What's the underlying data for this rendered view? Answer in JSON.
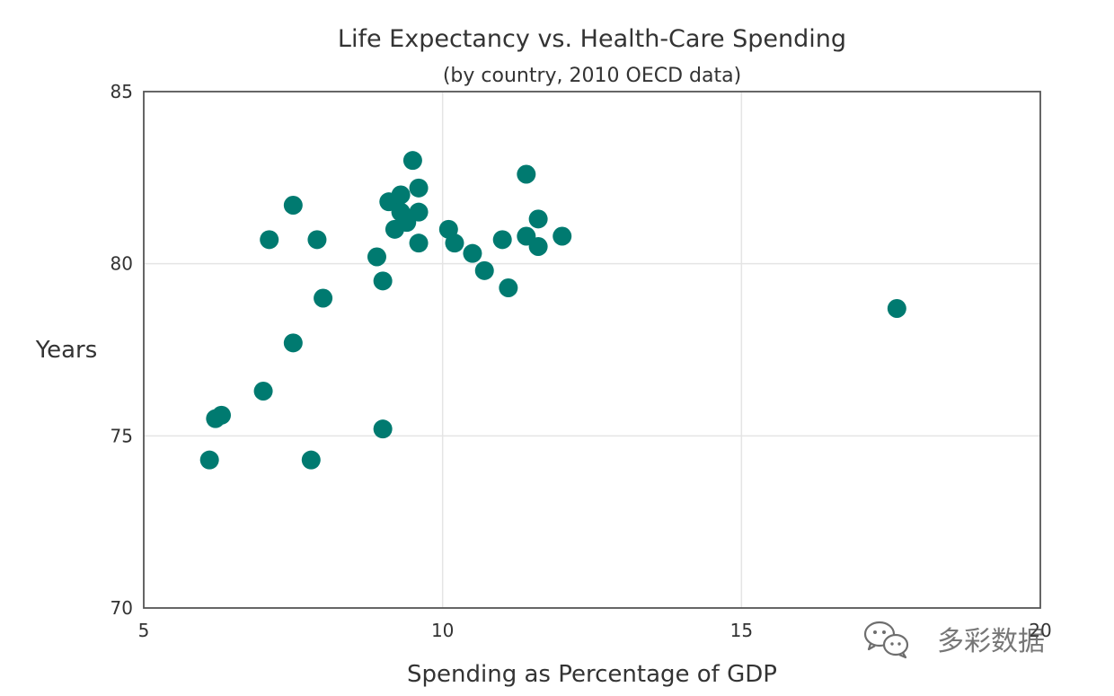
{
  "chart_data": {
    "type": "scatter",
    "title": "Life Expectancy vs. Health-Care Spending",
    "subtitle": "(by country, 2010 OECD data)",
    "xlabel": "Spending as Percentage of GDP",
    "ylabel": "Years",
    "xlim": [
      5,
      20
    ],
    "ylim": [
      70,
      85
    ],
    "xticks": [
      5,
      10,
      15,
      20
    ],
    "yticks": [
      70,
      75,
      80,
      85
    ],
    "grid": true,
    "marker_color": "#007a70",
    "points": [
      {
        "x": 6.1,
        "y": 74.3
      },
      {
        "x": 6.2,
        "y": 75.5
      },
      {
        "x": 6.3,
        "y": 75.6
      },
      {
        "x": 7.0,
        "y": 76.3
      },
      {
        "x": 7.1,
        "y": 80.7
      },
      {
        "x": 7.5,
        "y": 81.7
      },
      {
        "x": 7.5,
        "y": 77.7
      },
      {
        "x": 7.8,
        "y": 74.3
      },
      {
        "x": 7.9,
        "y": 80.7
      },
      {
        "x": 8.0,
        "y": 79.0
      },
      {
        "x": 8.9,
        "y": 80.2
      },
      {
        "x": 9.0,
        "y": 79.5
      },
      {
        "x": 9.0,
        "y": 75.2
      },
      {
        "x": 9.1,
        "y": 81.8
      },
      {
        "x": 9.2,
        "y": 81.0
      },
      {
        "x": 9.3,
        "y": 82.0
      },
      {
        "x": 9.3,
        "y": 81.5
      },
      {
        "x": 9.4,
        "y": 81.2
      },
      {
        "x": 9.5,
        "y": 83.0
      },
      {
        "x": 9.6,
        "y": 82.2
      },
      {
        "x": 9.6,
        "y": 81.5
      },
      {
        "x": 9.6,
        "y": 80.6
      },
      {
        "x": 10.1,
        "y": 81.0
      },
      {
        "x": 10.2,
        "y": 80.6
      },
      {
        "x": 10.5,
        "y": 80.3
      },
      {
        "x": 10.7,
        "y": 79.8
      },
      {
        "x": 11.0,
        "y": 80.7
      },
      {
        "x": 11.1,
        "y": 79.3
      },
      {
        "x": 11.4,
        "y": 82.6
      },
      {
        "x": 11.4,
        "y": 80.8
      },
      {
        "x": 11.6,
        "y": 81.3
      },
      {
        "x": 11.6,
        "y": 80.5
      },
      {
        "x": 12.0,
        "y": 80.8
      },
      {
        "x": 17.6,
        "y": 78.7
      }
    ]
  },
  "watermark": {
    "text": "多彩数据",
    "icon": "wechat-icon"
  }
}
